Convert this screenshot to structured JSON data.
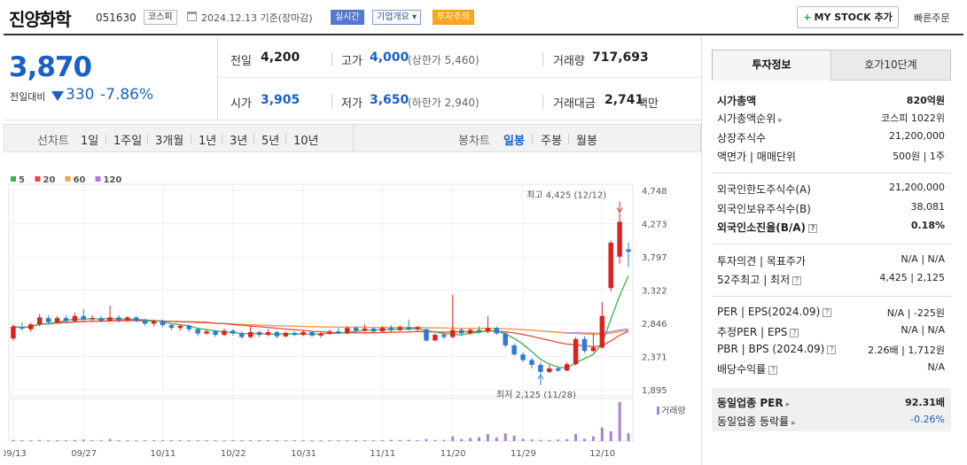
{
  "header": {
    "name": "진양화학",
    "code": "051630",
    "market": "코스피",
    "date_text": "2024.12.13  기준(장마감)",
    "live_label": "실시간",
    "company_info_label": "기업개요",
    "warning_label": "투자주의",
    "my_stock_label": "MY STOCK 추가",
    "quick_order_label": "빠른주문"
  },
  "price": {
    "current": "3,870",
    "prev_label": "전일대비",
    "change": "330",
    "change_pct": "-7.86%"
  },
  "stats": {
    "prev_close_label": "전일",
    "prev_close": "4,200",
    "high_label": "고가",
    "high": "4,000",
    "upper_limit": "(상한가 5,460)",
    "volume_label": "거래량",
    "volume": "717,693",
    "open_label": "시가",
    "open": "3,905",
    "low_label": "저가",
    "low": "3,650",
    "lower_limit": "(하한가 2,940)",
    "amount_label": "거래대금",
    "amount": "2,741",
    "amount_unit": "백만"
  },
  "periods": {
    "line_chart_label": "선차트",
    "line_items": [
      "1일",
      "1주일",
      "3개월",
      "1년",
      "3년",
      "5년",
      "10년"
    ],
    "candle_chart_label": "봉차트",
    "candle_items": [
      "일봉",
      "주봉",
      "월봉"
    ],
    "active_candle": "일봉"
  },
  "chart_data": {
    "type": "candlestick",
    "legend": [
      {
        "name": "5",
        "color": "#3cb34a"
      },
      {
        "name": "20",
        "color": "#e64a3b"
      },
      {
        "name": "60",
        "color": "#f5a04a"
      },
      {
        "name": "120",
        "color": "#a77fd8"
      }
    ],
    "y_ticks": [
      "4,748",
      "4,273",
      "3,797",
      "3,322",
      "2,846",
      "2,371",
      "1,895"
    ],
    "ylim": [
      1895,
      4748
    ],
    "x_ticks": [
      "09/13",
      "09/27",
      "10/11",
      "10/22",
      "10/31",
      "11/11",
      "11/20",
      "11/29",
      "12/10"
    ],
    "high_annotation": "최고 4,425 (12/12)",
    "low_annotation": "최저 2,125 (11/28)",
    "volume_label": "거래량",
    "candles": [
      {
        "o": 2630,
        "c": 2800,
        "h": 2830,
        "l": 2600
      },
      {
        "o": 2790,
        "c": 2770,
        "h": 2860,
        "l": 2740
      },
      {
        "o": 2760,
        "c": 2830,
        "h": 2850,
        "l": 2720
      },
      {
        "o": 2830,
        "c": 2930,
        "h": 2980,
        "l": 2800
      },
      {
        "o": 2920,
        "c": 2860,
        "h": 2960,
        "l": 2830
      },
      {
        "o": 2860,
        "c": 2920,
        "h": 2950,
        "l": 2840
      },
      {
        "o": 2920,
        "c": 2880,
        "h": 2960,
        "l": 2850
      },
      {
        "o": 2880,
        "c": 2950,
        "h": 3000,
        "l": 2860
      },
      {
        "o": 2950,
        "c": 2900,
        "h": 3050,
        "l": 2880
      },
      {
        "o": 2900,
        "c": 2920,
        "h": 2960,
        "l": 2870
      },
      {
        "o": 2920,
        "c": 2880,
        "h": 2950,
        "l": 2860
      },
      {
        "o": 2880,
        "c": 2930,
        "h": 3100,
        "l": 2870
      },
      {
        "o": 2930,
        "c": 2890,
        "h": 2960,
        "l": 2860
      },
      {
        "o": 2890,
        "c": 2930,
        "h": 2950,
        "l": 2870
      },
      {
        "o": 2930,
        "c": 2880,
        "h": 2950,
        "l": 2860
      },
      {
        "o": 2880,
        "c": 2840,
        "h": 2910,
        "l": 2810
      },
      {
        "o": 2840,
        "c": 2880,
        "h": 2900,
        "l": 2800
      },
      {
        "o": 2880,
        "c": 2820,
        "h": 2900,
        "l": 2790
      },
      {
        "o": 2820,
        "c": 2780,
        "h": 2840,
        "l": 2750
      },
      {
        "o": 2780,
        "c": 2810,
        "h": 2830,
        "l": 2740
      },
      {
        "o": 2810,
        "c": 2760,
        "h": 2830,
        "l": 2720
      },
      {
        "o": 2760,
        "c": 2700,
        "h": 2780,
        "l": 2660
      },
      {
        "o": 2700,
        "c": 2730,
        "h": 2760,
        "l": 2680
      },
      {
        "o": 2730,
        "c": 2680,
        "h": 2750,
        "l": 2650
      },
      {
        "o": 2680,
        "c": 2740,
        "h": 2770,
        "l": 2660
      },
      {
        "o": 2740,
        "c": 2700,
        "h": 2760,
        "l": 2670
      },
      {
        "o": 2700,
        "c": 2650,
        "h": 2730,
        "l": 2620
      },
      {
        "o": 2650,
        "c": 2720,
        "h": 2800,
        "l": 2630
      },
      {
        "o": 2720,
        "c": 2680,
        "h": 2740,
        "l": 2650
      },
      {
        "o": 2680,
        "c": 2720,
        "h": 2760,
        "l": 2660
      },
      {
        "o": 2720,
        "c": 2660,
        "h": 2740,
        "l": 2630
      },
      {
        "o": 2660,
        "c": 2710,
        "h": 2730,
        "l": 2640
      },
      {
        "o": 2710,
        "c": 2680,
        "h": 2730,
        "l": 2660
      },
      {
        "o": 2680,
        "c": 2720,
        "h": 2750,
        "l": 2660
      },
      {
        "o": 2720,
        "c": 2670,
        "h": 2740,
        "l": 2650
      },
      {
        "o": 2670,
        "c": 2700,
        "h": 2720,
        "l": 2640
      },
      {
        "o": 2700,
        "c": 2730,
        "h": 2760,
        "l": 2680
      },
      {
        "o": 2730,
        "c": 2700,
        "h": 2780,
        "l": 2690
      },
      {
        "o": 2700,
        "c": 2780,
        "h": 2800,
        "l": 2690
      },
      {
        "o": 2780,
        "c": 2740,
        "h": 2800,
        "l": 2720
      },
      {
        "o": 2740,
        "c": 2770,
        "h": 2830,
        "l": 2720
      },
      {
        "o": 2770,
        "c": 2730,
        "h": 2790,
        "l": 2700
      },
      {
        "o": 2730,
        "c": 2780,
        "h": 2800,
        "l": 2710
      },
      {
        "o": 2780,
        "c": 2750,
        "h": 2820,
        "l": 2720
      },
      {
        "o": 2750,
        "c": 2790,
        "h": 2820,
        "l": 2730
      },
      {
        "o": 2790,
        "c": 2760,
        "h": 2900,
        "l": 2740
      },
      {
        "o": 2760,
        "c": 2790,
        "h": 2810,
        "l": 2740
      },
      {
        "o": 2760,
        "c": 2600,
        "h": 2770,
        "l": 2580
      },
      {
        "o": 2600,
        "c": 2680,
        "h": 2700,
        "l": 2590
      },
      {
        "o": 2680,
        "c": 2650,
        "h": 2720,
        "l": 2620
      },
      {
        "o": 2650,
        "c": 2750,
        "h": 3250,
        "l": 2630
      },
      {
        "o": 2750,
        "c": 2700,
        "h": 2780,
        "l": 2680
      },
      {
        "o": 2700,
        "c": 2750,
        "h": 2770,
        "l": 2680
      },
      {
        "o": 2750,
        "c": 2730,
        "h": 2800,
        "l": 2700
      },
      {
        "o": 2730,
        "c": 2780,
        "h": 2950,
        "l": 2700
      },
      {
        "o": 2780,
        "c": 2700,
        "h": 2800,
        "l": 2680
      },
      {
        "o": 2700,
        "c": 2530,
        "h": 2720,
        "l": 2500
      },
      {
        "o": 2530,
        "c": 2400,
        "h": 2560,
        "l": 2380
      },
      {
        "o": 2400,
        "c": 2320,
        "h": 2430,
        "l": 2290
      },
      {
        "o": 2320,
        "c": 2250,
        "h": 2350,
        "l": 2200
      },
      {
        "o": 2250,
        "c": 2150,
        "h": 2280,
        "l": 2125
      },
      {
        "o": 2150,
        "c": 2200,
        "h": 2250,
        "l": 2130
      },
      {
        "o": 2200,
        "c": 2170,
        "h": 2230,
        "l": 2150
      },
      {
        "o": 2170,
        "c": 2260,
        "h": 2290,
        "l": 2160
      },
      {
        "o": 2260,
        "c": 2620,
        "h": 2650,
        "l": 2240
      },
      {
        "o": 2620,
        "c": 2450,
        "h": 2660,
        "l": 2420
      },
      {
        "o": 2450,
        "c": 2500,
        "h": 2700,
        "l": 2430
      },
      {
        "o": 2500,
        "c": 2950,
        "h": 3150,
        "l": 2480
      },
      {
        "o": 3350,
        "c": 4000,
        "h": 4030,
        "l": 3300
      },
      {
        "o": 3800,
        "c": 4300,
        "h": 4425,
        "l": 3700
      },
      {
        "o": 3905,
        "c": 3870,
        "h": 4000,
        "l": 3650
      }
    ],
    "volume": [
      3,
      2,
      2,
      3,
      2,
      2,
      2,
      3,
      4,
      2,
      2,
      5,
      2,
      2,
      2,
      2,
      2,
      2,
      2,
      2,
      2,
      2,
      2,
      2,
      2,
      2,
      2,
      2,
      2,
      2,
      2,
      2,
      2,
      2,
      2,
      2,
      2,
      2,
      2,
      2,
      2,
      2,
      2,
      3,
      3,
      3,
      2,
      5,
      3,
      3,
      12,
      5,
      8,
      10,
      18,
      9,
      20,
      14,
      6,
      4,
      3,
      3,
      4,
      5,
      18,
      6,
      12,
      35,
      25,
      100,
      20
    ]
  },
  "info_tabs": [
    "투자정보",
    "호가10단계"
  ],
  "info": {
    "market_cap_label": "시가총액",
    "market_cap": "820억원",
    "market_cap_rank_label": "시가총액순위",
    "market_cap_rank": "코스피 1022위",
    "listed_shares_label": "상장주식수",
    "listed_shares": "21,200,000",
    "par_label": "액면가 | 매매단위",
    "par": "500원 | 1주",
    "foreign_limit_label": "외국인한도주식수(A)",
    "foreign_limit": "21,200,000",
    "foreign_hold_label": "외국인보유주식수(B)",
    "foreign_hold": "38,081",
    "foreign_ratio_label": "외국인소진율(B/A)",
    "foreign_ratio": "0.18%",
    "opinion_label": "투자의견 | 목표주가",
    "opinion": "N/A | N/A",
    "w52_label": "52주최고 | 최저",
    "w52": "4,425 | 2,125",
    "per_label": "PER | EPS(2024.09)",
    "per": "N/A | -225원",
    "est_per_label": "추정PER | EPS",
    "est_per": "N/A | N/A",
    "pbr_label": "PBR | BPS (2024.09)",
    "pbr": "2.26배 | 1,712원",
    "div_label": "배당수익률",
    "div": "N/A",
    "sector_per_label": "동일업종 PER",
    "sector_per": "92.31배",
    "sector_chg_label": "동일업종 등락률",
    "sector_chg": "-0.26%"
  }
}
